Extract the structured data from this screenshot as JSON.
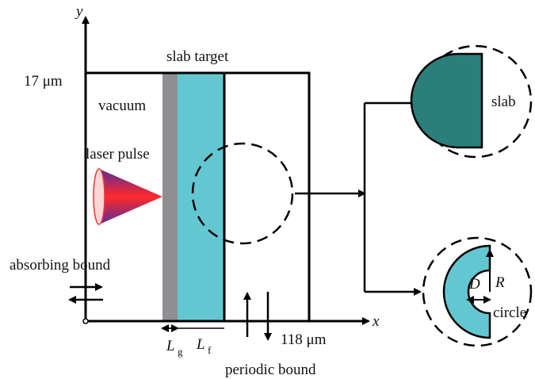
{
  "axes": {
    "x": "x",
    "y": "y"
  },
  "labels": {
    "slab_target": "slab target",
    "height": "17 μm",
    "vacuum": "vacuum",
    "laser": "laser pulse",
    "absorbing": "absorbing bound",
    "width": "118 μm",
    "periodic": "periodic bound",
    "lg": {
      "main": "L",
      "sub": "g"
    },
    "lf": {
      "main": "L",
      "sub": "f"
    },
    "slab": "slab",
    "circle": "circle",
    "d": "D",
    "r": "R"
  }
}
